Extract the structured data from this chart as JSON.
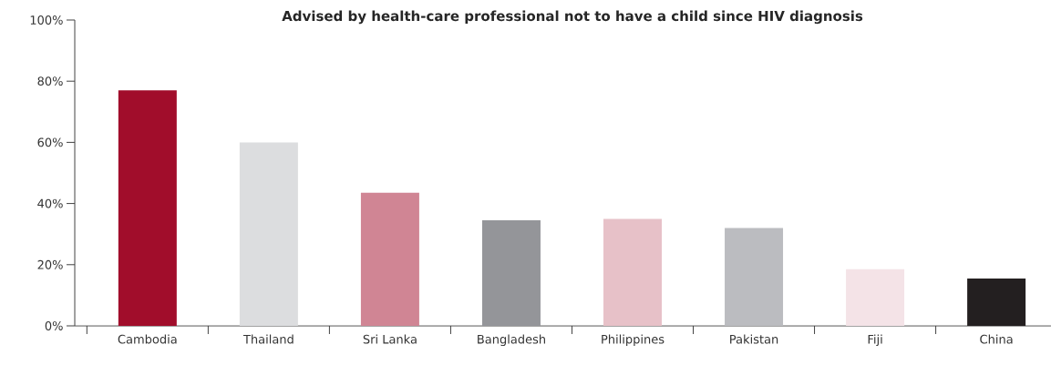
{
  "chart_data": {
    "type": "bar",
    "title": "Advised by health-care professional not to have a child since HIV diagnosis",
    "categories": [
      "Cambodia",
      "Thailand",
      "Sri Lanka",
      "Bangladesh",
      "Philippines",
      "Pakistan",
      "Fiji",
      "China"
    ],
    "values": [
      77,
      60,
      43.5,
      34.5,
      35,
      32,
      18.5,
      15.5
    ],
    "colors": [
      "#a10d2b",
      "#dcdddf",
      "#d08594",
      "#949599",
      "#e7c1c8",
      "#bbbcc0",
      "#f4e3e7",
      "#231f20"
    ],
    "ylim": [
      0,
      100
    ],
    "yticks": [
      {
        "value": 0,
        "label": "0%"
      },
      {
        "value": 20,
        "label": "20%"
      },
      {
        "value": 40,
        "label": "40%"
      },
      {
        "value": 60,
        "label": "60%"
      },
      {
        "value": 80,
        "label": "80%"
      },
      {
        "value": 100,
        "label": "100%"
      }
    ],
    "grid": false
  }
}
